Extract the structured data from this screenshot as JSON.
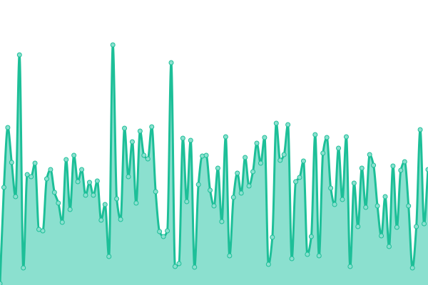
{
  "chart_data": {
    "type": "area",
    "title": "",
    "xlabel": "",
    "ylabel": "",
    "grid": false,
    "legend": "none",
    "ylim": [
      0,
      400
    ],
    "colors": {
      "line": "#1dbf98",
      "fill": "#8be0cf",
      "point_fill": "#8be0cf",
      "point_stroke": "#1dbf98"
    },
    "values": [
      2,
      137,
      221,
      172,
      124,
      323,
      24,
      155,
      152,
      171,
      78,
      76,
      149,
      162,
      130,
      115,
      88,
      176,
      106,
      182,
      145,
      162,
      126,
      144,
      126,
      146,
      91,
      113,
      40,
      337,
      121,
      92,
      220,
      152,
      201,
      115,
      216,
      182,
      177,
      222,
      131,
      75,
      68,
      76,
      312,
      26,
      30,
      206,
      117,
      203,
      25,
      141,
      181,
      182,
      133,
      111,
      164,
      89,
      208,
      41,
      123,
      157,
      129,
      179,
      139,
      159,
      199,
      171,
      207,
      29,
      67,
      227,
      175,
      183,
      225,
      37,
      145,
      151,
      174,
      43,
      68,
      211,
      41,
      185,
      207,
      136,
      113,
      192,
      120,
      208,
      26,
      143,
      82,
      164,
      109,
      183,
      168,
      111,
      69,
      124,
      54,
      167,
      81,
      161,
      173,
      111,
      24,
      82,
      218,
      86,
      162
    ]
  }
}
